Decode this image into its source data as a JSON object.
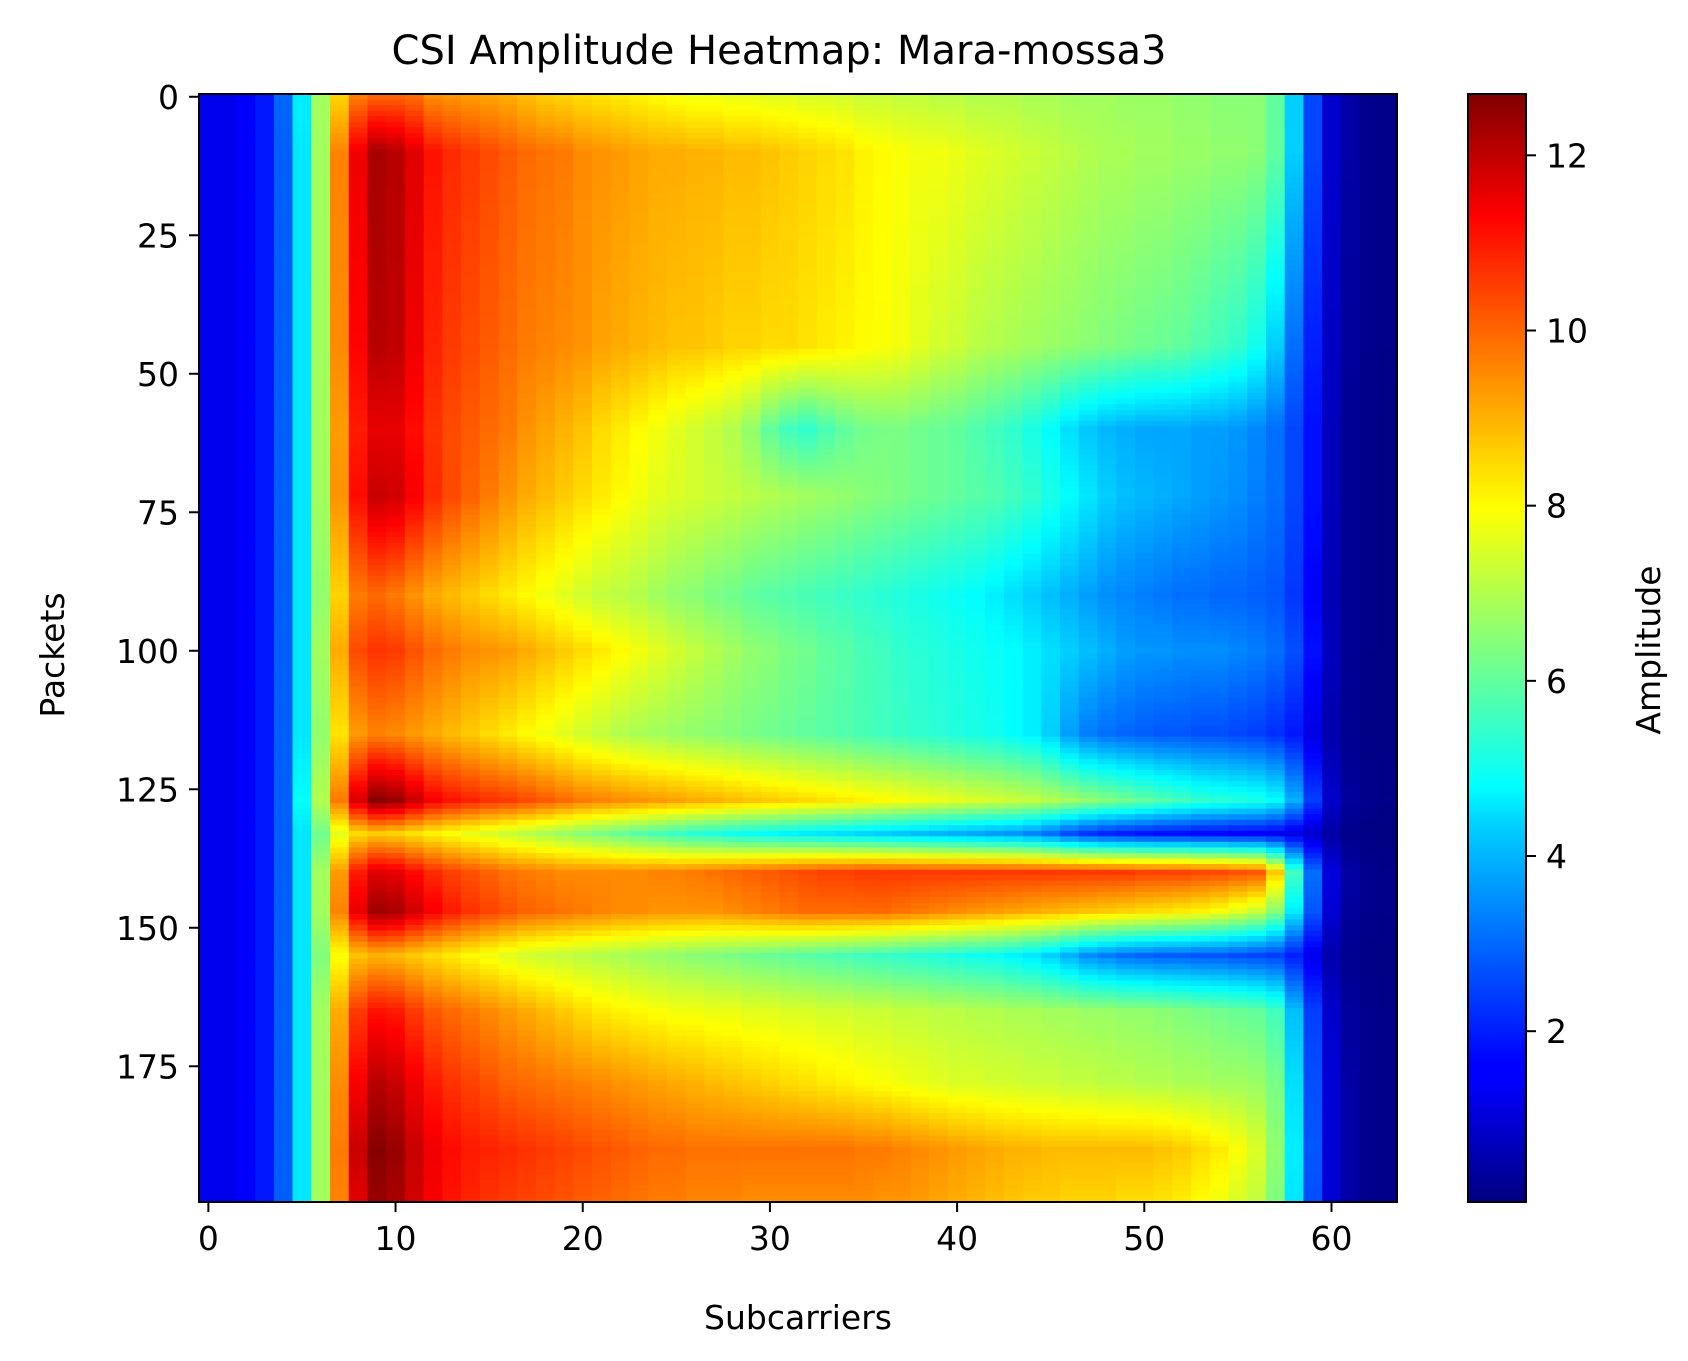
{
  "chart_data": {
    "type": "heatmap",
    "title": "CSI Amplitude Heatmap: Mara-mossa3",
    "xlabel": "Subcarriers",
    "ylabel": "Packets",
    "colorbar_label": "Amplitude",
    "colormap": "jet",
    "n_subcarriers": 64,
    "n_packets": 200,
    "xlim": [
      -0.5,
      63.5
    ],
    "ylim": [
      -0.5,
      199.5
    ],
    "y_inverted": true,
    "x_ticks": [
      0,
      10,
      20,
      30,
      40,
      50,
      60
    ],
    "x_tick_labels": [
      "0",
      "10",
      "20",
      "30",
      "40",
      "50",
      "60"
    ],
    "y_ticks": [
      0,
      25,
      50,
      75,
      100,
      125,
      150,
      175
    ],
    "y_tick_labels": [
      "0",
      "25",
      "50",
      "75",
      "100",
      "125",
      "150",
      "175"
    ],
    "color_range": [
      0.05,
      12.7
    ],
    "colorbar_ticks": [
      2,
      4,
      6,
      8,
      10,
      12
    ],
    "colorbar_tick_labels": [
      "2",
      "4",
      "6",
      "8",
      "10",
      "12"
    ],
    "row_keyframes": [
      {
        "packet": 0,
        "values": [
          1.4,
          1.4,
          1.6,
          1.9,
          2.9,
          4.6,
          6.8,
          8.5,
          9.6,
          9.9,
          9.9,
          9.8,
          9.4,
          9.3,
          9.2,
          9.1,
          9.0,
          8.8,
          8.6,
          8.5,
          8.4,
          8.3,
          8.2,
          8.1,
          8.0,
          7.9,
          7.8,
          7.8,
          7.7,
          7.7,
          7.6,
          7.6,
          7.5,
          7.5,
          7.4,
          7.3,
          7.3,
          7.2,
          7.2,
          7.1,
          7.1,
          7.0,
          7.0,
          7.0,
          6.9,
          6.9,
          6.8,
          6.8,
          6.8,
          6.7,
          6.7,
          6.7,
          6.6,
          6.6,
          6.5,
          6.5,
          6.5,
          6.0,
          4.2,
          2.5,
          1.0,
          0.5,
          0.2,
          0.15
        ]
      },
      {
        "packet": 10,
        "values": [
          1.4,
          1.4,
          1.6,
          1.9,
          2.8,
          4.5,
          6.8,
          9.5,
          11.3,
          12.2,
          12.0,
          11.5,
          10.9,
          10.6,
          10.4,
          10.2,
          10.0,
          9.8,
          9.7,
          9.6,
          9.4,
          9.3,
          9.2,
          9.1,
          9.0,
          9.0,
          8.9,
          8.9,
          8.8,
          8.8,
          8.7,
          8.6,
          8.5,
          8.4,
          8.3,
          8.1,
          8.0,
          7.9,
          7.8,
          7.8,
          7.7,
          7.6,
          7.5,
          7.4,
          7.3,
          7.2,
          7.1,
          7.0,
          6.9,
          6.9,
          6.8,
          6.8,
          6.7,
          6.7,
          6.6,
          6.6,
          6.5,
          6.0,
          4.2,
          2.5,
          1.0,
          0.5,
          0.2,
          0.15
        ]
      },
      {
        "packet": 45,
        "values": [
          1.4,
          1.4,
          1.6,
          1.9,
          2.8,
          4.5,
          6.8,
          9.4,
          11.1,
          12.0,
          11.9,
          11.3,
          10.7,
          10.4,
          10.2,
          10.0,
          9.8,
          9.6,
          9.5,
          9.4,
          9.3,
          9.1,
          9.0,
          8.9,
          8.8,
          8.7,
          8.7,
          8.6,
          8.5,
          8.5,
          8.4,
          8.4,
          8.3,
          8.2,
          8.1,
          8.0,
          7.9,
          7.8,
          7.6,
          7.4,
          7.3,
          7.1,
          7.0,
          6.9,
          6.8,
          6.7,
          6.6,
          6.5,
          6.4,
          6.3,
          6.2,
          6.1,
          6.0,
          5.8,
          5.6,
          5.4,
          5.0,
          4.2,
          3.0,
          2.0,
          0.9,
          0.4,
          0.2,
          0.15
        ]
      },
      {
        "packet": 60,
        "values": [
          1.4,
          1.4,
          1.6,
          1.9,
          2.8,
          4.5,
          6.8,
          9.2,
          10.8,
          11.4,
          11.4,
          11.0,
          10.5,
          10.2,
          10.0,
          9.8,
          9.6,
          9.3,
          9.1,
          8.9,
          8.7,
          8.4,
          8.2,
          8.0,
          7.8,
          7.6,
          7.4,
          7.2,
          7.0,
          6.6,
          6.0,
          5.6,
          5.4,
          5.7,
          6.0,
          6.2,
          6.3,
          6.3,
          6.2,
          6.1,
          6.0,
          5.8,
          5.6,
          5.4,
          5.1,
          4.8,
          4.4,
          4.1,
          3.9,
          3.8,
          3.7,
          3.7,
          3.7,
          3.6,
          3.6,
          3.5,
          3.3,
          3.0,
          2.5,
          1.8,
          0.8,
          0.3,
          0.15,
          0.1
        ]
      },
      {
        "packet": 72,
        "values": [
          1.4,
          1.4,
          1.6,
          1.9,
          2.8,
          4.5,
          6.8,
          9.3,
          11.0,
          11.8,
          11.7,
          11.2,
          10.6,
          10.2,
          9.9,
          9.6,
          9.3,
          9.0,
          8.8,
          8.6,
          8.4,
          8.2,
          8.0,
          7.8,
          7.6,
          7.5,
          7.4,
          7.3,
          7.2,
          7.1,
          7.0,
          6.9,
          6.8,
          6.7,
          6.6,
          6.5,
          6.4,
          6.3,
          6.2,
          6.1,
          6.0,
          5.9,
          5.8,
          5.6,
          5.4,
          5.1,
          4.8,
          4.5,
          4.2,
          4.0,
          3.9,
          3.8,
          3.7,
          3.6,
          3.5,
          3.4,
          3.2,
          3.0,
          2.5,
          1.8,
          0.8,
          0.3,
          0.15,
          0.1
        ]
      },
      {
        "packet": 90,
        "values": [
          1.4,
          1.4,
          1.6,
          1.9,
          2.8,
          4.5,
          6.6,
          8.5,
          9.6,
          9.8,
          9.6,
          9.3,
          9.0,
          8.8,
          8.6,
          8.4,
          8.2,
          8.0,
          7.8,
          7.6,
          7.4,
          7.2,
          7.1,
          7.0,
          6.8,
          6.6,
          6.5,
          6.3,
          6.2,
          6.0,
          5.9,
          5.8,
          5.7,
          5.6,
          5.5,
          5.4,
          5.3,
          5.2,
          5.1,
          5.0,
          4.9,
          4.8,
          4.6,
          4.4,
          4.2,
          4.0,
          3.8,
          3.6,
          3.4,
          3.3,
          3.2,
          3.1,
          3.0,
          3.0,
          2.9,
          2.9,
          2.8,
          2.7,
          2.3,
          1.6,
          0.7,
          0.3,
          0.15,
          0.1
        ]
      },
      {
        "packet": 100,
        "values": [
          1.4,
          1.4,
          1.6,
          1.9,
          2.8,
          4.5,
          6.8,
          9.0,
          10.2,
          10.5,
          10.4,
          10.1,
          9.8,
          9.6,
          9.4,
          9.3,
          9.2,
          9.0,
          8.8,
          8.6,
          8.4,
          8.2,
          8.0,
          7.8,
          7.6,
          7.4,
          7.2,
          7.0,
          6.8,
          6.6,
          6.5,
          6.3,
          6.2,
          6.0,
          5.9,
          5.7,
          5.6,
          5.4,
          5.3,
          5.2,
          5.1,
          5.0,
          4.9,
          4.8,
          4.6,
          4.4,
          4.2,
          4.0,
          3.8,
          3.6,
          3.5,
          3.5,
          3.4,
          3.4,
          3.4,
          3.3,
          3.2,
          3.0,
          2.6,
          1.8,
          0.8,
          0.3,
          0.15,
          0.1
        ]
      },
      {
        "packet": 115,
        "values": [
          1.4,
          1.4,
          1.6,
          1.9,
          2.8,
          4.5,
          6.6,
          8.3,
          9.2,
          9.5,
          9.4,
          9.2,
          9.0,
          8.8,
          8.6,
          8.4,
          8.2,
          8.0,
          7.8,
          7.6,
          7.4,
          7.2,
          7.0,
          6.9,
          6.8,
          6.7,
          6.6,
          6.5,
          6.4,
          6.3,
          6.2,
          6.1,
          6.0,
          5.9,
          5.8,
          5.7,
          5.6,
          5.5,
          5.4,
          5.3,
          5.2,
          5.1,
          5.0,
          4.8,
          4.6,
          4.2,
          3.6,
          3.2,
          3.0,
          2.9,
          2.8,
          2.7,
          2.7,
          2.6,
          2.6,
          2.5,
          2.4,
          2.2,
          1.9,
          1.3,
          0.6,
          0.25,
          0.12,
          0.1
        ]
      },
      {
        "packet": 127,
        "values": [
          1.4,
          1.4,
          1.6,
          1.9,
          2.8,
          4.8,
          7.0,
          9.6,
          11.6,
          12.6,
          12.4,
          11.8,
          11.2,
          10.9,
          10.7,
          10.5,
          10.4,
          10.2,
          10.0,
          9.8,
          9.6,
          9.5,
          9.4,
          9.3,
          9.2,
          9.1,
          9.0,
          8.9,
          8.8,
          8.7,
          8.6,
          8.5,
          8.4,
          8.3,
          8.2,
          8.1,
          8.0,
          7.9,
          7.8,
          7.7,
          7.6,
          7.5,
          7.4,
          7.3,
          7.2,
          7.0,
          6.8,
          6.6,
          6.4,
          6.2,
          6.0,
          5.8,
          5.6,
          5.4,
          5.3,
          5.2,
          5.1,
          4.8,
          3.8,
          2.4,
          1.0,
          0.4,
          0.2,
          0.15
        ]
      },
      {
        "packet": 133,
        "values": [
          1.4,
          1.4,
          1.6,
          1.9,
          2.8,
          4.5,
          6.2,
          7.6,
          8.4,
          8.6,
          8.5,
          8.3,
          8.1,
          7.9,
          7.7,
          7.5,
          7.3,
          7.1,
          6.9,
          6.7,
          6.5,
          6.3,
          6.1,
          5.9,
          5.7,
          5.5,
          5.3,
          5.2,
          5.0,
          4.9,
          4.8,
          4.7,
          4.6,
          4.5,
          4.4,
          4.3,
          4.2,
          4.1,
          4.0,
          3.9,
          3.8,
          3.7,
          3.6,
          3.5,
          3.3,
          3.0,
          2.6,
          2.3,
          2.1,
          2.0,
          1.9,
          1.8,
          1.8,
          1.7,
          1.7,
          1.6,
          1.6,
          1.5,
          1.3,
          1.0,
          0.5,
          0.2,
          0.1,
          0.08
        ]
      },
      {
        "packet": 140,
        "values": [
          1.4,
          1.4,
          1.6,
          1.9,
          2.8,
          4.5,
          6.8,
          9.2,
          10.8,
          11.5,
          11.4,
          11.0,
          10.6,
          10.3,
          10.1,
          9.9,
          9.7,
          9.6,
          9.5,
          9.4,
          9.4,
          9.4,
          9.4,
          9.4,
          9.5,
          9.5,
          9.6,
          9.7,
          9.8,
          9.9,
          10.0,
          10.1,
          10.2,
          10.3,
          10.3,
          10.4,
          10.4,
          10.4,
          10.4,
          10.4,
          10.4,
          10.4,
          10.4,
          10.4,
          10.4,
          10.4,
          10.4,
          10.4,
          10.4,
          10.4,
          10.3,
          10.3,
          10.3,
          10.2,
          10.2,
          10.1,
          10.0,
          8.6,
          5.6,
          3.0,
          1.2,
          0.5,
          0.2,
          0.15
        ]
      },
      {
        "packet": 147,
        "values": [
          1.4,
          1.4,
          1.6,
          1.9,
          2.8,
          4.5,
          6.8,
          9.5,
          11.4,
          12.3,
          12.2,
          11.7,
          11.2,
          10.8,
          10.5,
          10.3,
          10.1,
          9.9,
          9.8,
          9.7,
          9.6,
          9.5,
          9.4,
          9.4,
          9.3,
          9.3,
          9.3,
          9.3,
          9.4,
          9.5,
          9.6,
          9.7,
          9.8,
          9.8,
          9.8,
          9.8,
          9.8,
          9.7,
          9.6,
          9.5,
          9.4,
          9.3,
          9.2,
          9.1,
          9.0,
          8.9,
          8.8,
          8.7,
          8.6,
          8.5,
          8.4,
          8.3,
          8.2,
          8.1,
          7.9,
          7.6,
          7.3,
          6.5,
          4.6,
          2.7,
          1.1,
          0.4,
          0.2,
          0.15
        ]
      },
      {
        "packet": 155,
        "values": [
          1.4,
          1.4,
          1.6,
          1.9,
          2.8,
          4.5,
          6.4,
          7.9,
          8.7,
          8.9,
          8.8,
          8.6,
          8.4,
          8.2,
          8.0,
          7.8,
          7.6,
          7.4,
          7.3,
          7.2,
          7.1,
          7.0,
          6.9,
          6.8,
          6.7,
          6.6,
          6.5,
          6.4,
          6.3,
          6.2,
          6.1,
          6.0,
          5.9,
          5.8,
          5.7,
          5.6,
          5.5,
          5.4,
          5.3,
          5.2,
          5.1,
          5.0,
          4.9,
          4.7,
          4.5,
          4.2,
          3.8,
          3.4,
          3.2,
          3.0,
          2.9,
          2.8,
          2.8,
          2.7,
          2.7,
          2.6,
          2.5,
          2.4,
          2.0,
          1.4,
          0.6,
          0.25,
          0.12,
          0.1
        ]
      },
      {
        "packet": 165,
        "values": [
          1.4,
          1.4,
          1.6,
          1.9,
          2.8,
          4.5,
          6.8,
          9.0,
          10.4,
          10.9,
          10.8,
          10.4,
          10.0,
          9.8,
          9.6,
          9.4,
          9.2,
          9.0,
          8.8,
          8.6,
          8.4,
          8.2,
          8.1,
          8.0,
          7.9,
          7.8,
          7.8,
          7.7,
          7.7,
          7.6,
          7.6,
          7.5,
          7.5,
          7.4,
          7.4,
          7.3,
          7.3,
          7.2,
          7.2,
          7.1,
          7.1,
          7.0,
          7.0,
          6.9,
          6.9,
          6.8,
          6.8,
          6.7,
          6.7,
          6.6,
          6.6,
          6.5,
          6.4,
          6.3,
          6.2,
          6.1,
          6.0,
          5.6,
          4.0,
          2.4,
          1.0,
          0.4,
          0.2,
          0.15
        ]
      },
      {
        "packet": 178,
        "values": [
          1.4,
          1.4,
          1.6,
          1.9,
          2.8,
          4.5,
          6.8,
          9.4,
          11.2,
          12.0,
          11.8,
          11.3,
          10.8,
          10.5,
          10.3,
          10.1,
          9.9,
          9.8,
          9.7,
          9.6,
          9.5,
          9.4,
          9.3,
          9.2,
          9.1,
          9.0,
          8.9,
          8.8,
          8.7,
          8.6,
          8.5,
          8.4,
          8.3,
          8.2,
          8.1,
          8.0,
          7.9,
          7.8,
          7.7,
          7.6,
          7.5,
          7.5,
          7.4,
          7.4,
          7.3,
          7.3,
          7.2,
          7.2,
          7.1,
          7.1,
          7.0,
          7.0,
          6.9,
          6.9,
          6.8,
          6.8,
          6.7,
          6.3,
          4.4,
          2.6,
          1.1,
          0.5,
          0.2,
          0.15
        ]
      },
      {
        "packet": 190,
        "values": [
          1.4,
          1.4,
          1.6,
          1.9,
          2.8,
          4.5,
          6.8,
          9.6,
          11.8,
          12.6,
          12.4,
          11.8,
          11.3,
          11.0,
          10.8,
          10.7,
          10.6,
          10.5,
          10.4,
          10.3,
          10.2,
          10.1,
          10.0,
          9.9,
          9.8,
          9.8,
          9.7,
          9.7,
          9.7,
          9.7,
          9.7,
          9.7,
          9.7,
          9.7,
          9.7,
          9.6,
          9.6,
          9.5,
          9.4,
          9.3,
          9.2,
          9.1,
          9.0,
          8.9,
          8.9,
          8.8,
          8.8,
          8.8,
          8.8,
          8.8,
          8.8,
          8.7,
          8.6,
          8.4,
          8.2,
          7.9,
          7.5,
          6.6,
          4.6,
          2.7,
          1.1,
          0.5,
          0.2,
          0.15
        ]
      },
      {
        "packet": 199,
        "values": [
          1.4,
          1.4,
          1.6,
          1.9,
          2.8,
          4.5,
          6.8,
          9.5,
          11.5,
          12.4,
          12.2,
          11.7,
          11.2,
          10.9,
          10.7,
          10.5,
          10.4,
          10.3,
          10.2,
          10.1,
          10.0,
          9.9,
          9.8,
          9.7,
          9.6,
          9.6,
          9.5,
          9.5,
          9.5,
          9.4,
          9.4,
          9.4,
          9.4,
          9.4,
          9.4,
          9.4,
          9.3,
          9.3,
          9.2,
          9.1,
          9.0,
          8.9,
          8.8,
          8.7,
          8.6,
          8.6,
          8.5,
          8.5,
          8.5,
          8.4,
          8.4,
          8.3,
          8.2,
          8.0,
          7.8,
          7.5,
          7.2,
          6.4,
          4.5,
          2.6,
          1.1,
          0.5,
          0.2,
          0.15
        ]
      }
    ]
  }
}
